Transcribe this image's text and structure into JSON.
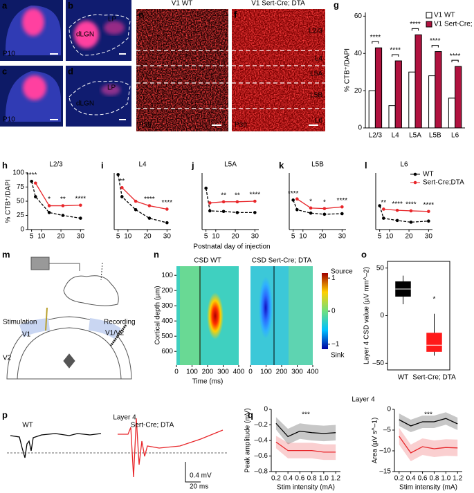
{
  "panel_labels": [
    "a",
    "b",
    "c",
    "d",
    "e",
    "f",
    "g",
    "h",
    "i",
    "j",
    "k",
    "l",
    "m",
    "n",
    "o",
    "p",
    "q"
  ],
  "histology": {
    "age_p10": "P10",
    "dlgn": "dLGN",
    "lp": "LP",
    "age_p30": "P30",
    "v1_wt": "V1 WT",
    "v1_dta": "V1 Sert-Cre; DTA",
    "layers": [
      "L2/3",
      "L4",
      "L5A",
      "L5B",
      "L6"
    ]
  },
  "chart_data": [
    {
      "type": "bar",
      "ylabel": "% CTB⁺/DAPI",
      "categories": [
        "L2/3",
        "L4",
        "L5A",
        "L5B",
        "L6"
      ],
      "series": [
        {
          "name": "V1 WT",
          "color": "#ffffff",
          "values": [
            20,
            12,
            30,
            28,
            16
          ]
        },
        {
          "name": "V1 Sert-Cre; DTA",
          "color": "#b0123f",
          "values": [
            43,
            36,
            50,
            41,
            33
          ]
        }
      ],
      "ylim": [
        0,
        62
      ],
      "yticks": [
        0,
        20,
        40,
        60
      ],
      "annotations": [
        "****",
        "****",
        "****",
        "****",
        "****"
      ]
    },
    {
      "type": "line",
      "title": "L2/3",
      "ylabel": "% CTB⁺/DAPI",
      "x": [
        5,
        7,
        14,
        21,
        30
      ],
      "xlim": [
        3,
        32
      ],
      "xticks": [
        5,
        10,
        20,
        30
      ],
      "ylim": [
        0,
        100
      ],
      "yticks": [
        0,
        25,
        50,
        75,
        100
      ],
      "markers": true,
      "series": [
        {
          "color": "#000000",
          "dashed": true,
          "values": [
            85,
            58,
            30,
            25,
            20
          ]
        },
        {
          "color": "#e8262a",
          "values": [
            null,
            82,
            42,
            42,
            43
          ]
        }
      ],
      "annotations": [
        {
          "x": 5,
          "text": "****"
        },
        {
          "x": 14,
          "text": "*"
        },
        {
          "x": 21,
          "text": "**"
        },
        {
          "x": 30,
          "text": "****"
        }
      ]
    },
    {
      "type": "line",
      "title": "L4",
      "x": [
        5,
        7,
        14,
        21,
        30
      ],
      "xlim": [
        3,
        32
      ],
      "xticks": [
        5,
        10,
        20,
        30
      ],
      "ylim": [
        0,
        100
      ],
      "markers": true,
      "series": [
        {
          "color": "#000000",
          "dashed": true,
          "values": [
            97,
            58,
            35,
            20,
            12
          ]
        },
        {
          "color": "#e8262a",
          "values": [
            null,
            74,
            50,
            42,
            36
          ]
        }
      ],
      "annotations": [
        {
          "x": 7,
          "text": "**"
        },
        {
          "x": 21,
          "text": "****"
        },
        {
          "x": 30,
          "text": "****"
        }
      ]
    },
    {
      "type": "line",
      "title": "L5A",
      "x": [
        5,
        7,
        14,
        21,
        30
      ],
      "xlim": [
        3,
        32
      ],
      "xticks": [
        5,
        10,
        20,
        30
      ],
      "ylim": [
        0,
        100
      ],
      "markers": true,
      "series": [
        {
          "color": "#000000",
          "dashed": true,
          "values": [
            73,
            33,
            32,
            30,
            30
          ]
        },
        {
          "color": "#e8262a",
          "values": [
            null,
            47,
            49,
            49,
            50
          ]
        }
      ],
      "annotations": [
        {
          "x": 14,
          "text": "**"
        },
        {
          "x": 21,
          "text": "**"
        },
        {
          "x": 30,
          "text": "****"
        }
      ]
    },
    {
      "type": "line",
      "title": "L5B",
      "x": [
        5,
        7,
        14,
        21,
        30
      ],
      "xlim": [
        3,
        32
      ],
      "xticks": [
        5,
        10,
        20,
        30
      ],
      "ylim": [
        0,
        100
      ],
      "markers": true,
      "series": [
        {
          "color": "#000000",
          "dashed": true,
          "values": [
            52,
            35,
            29,
            27,
            28
          ]
        },
        {
          "color": "#e8262a",
          "values": [
            null,
            54,
            38,
            37,
            40
          ]
        }
      ],
      "annotations": [
        {
          "x": 5,
          "text": "****"
        },
        {
          "x": 14,
          "text": "*"
        },
        {
          "x": 21,
          "text": "*"
        },
        {
          "x": 30,
          "text": "****"
        }
      ]
    },
    {
      "type": "line",
      "title": "L6",
      "x": [
        5,
        7,
        14,
        21,
        30
      ],
      "xlim": [
        3,
        32
      ],
      "xticks": [
        5,
        10,
        20,
        30
      ],
      "ylim": [
        0,
        100
      ],
      "markers": true,
      "series": [
        {
          "name": "WT",
          "color": "#000000",
          "dashed": true,
          "values": [
            42,
            20,
            16,
            13,
            15
          ]
        },
        {
          "name": "Sert-Cre;DTA",
          "color": "#e8262a",
          "values": [
            null,
            36,
            34,
            33,
            32
          ]
        }
      ],
      "annotations": [
        {
          "x": 7,
          "text": "**"
        },
        {
          "x": 14,
          "text": "****"
        },
        {
          "x": 21,
          "text": "****"
        },
        {
          "x": 30,
          "text": "****"
        }
      ]
    },
    {
      "type": "box",
      "ylabel": "Layer 4 CSD value (µV mm^–2)",
      "categories": [
        "WT",
        "Sert-Cre; DTA"
      ],
      "ylim": [
        -57,
        57
      ],
      "yticks": [
        {
          "value": -50,
          "label": "–50"
        },
        0,
        50
      ],
      "boxes": [
        {
          "color": "#000000",
          "min": 12,
          "q1": 20,
          "median": 28,
          "q3": 36,
          "max": 42
        },
        {
          "color": "#ff1a1a",
          "min": -42,
          "q1": -38,
          "median": -31,
          "q3": -18,
          "max": 2
        }
      ],
      "annotations": [
        {
          "text": "*"
        }
      ]
    },
    {
      "type": "line",
      "ylabel": "Peak amplitude (mV)",
      "xlabel": "Stim intensity (mA)",
      "x": [
        0.2,
        0.4,
        0.6,
        0.8,
        1,
        1.2
      ],
      "xlim": [
        0.12,
        1.28
      ],
      "xticks": [
        0.2,
        0.4,
        0.6,
        0.8,
        {
          "value": 1,
          "label": "1.0"
        },
        1.2
      ],
      "ylim": [
        -0.8,
        0
      ],
      "yticks": [
        {
          "value": -0.8,
          "label": "–0.8"
        },
        {
          "value": -0.6,
          "label": "–0.6"
        },
        {
          "value": -0.4,
          "label": "–0.4"
        },
        {
          "value": -0.2,
          "label": "–0.2"
        },
        0
      ],
      "series": [
        {
          "color": "#000000",
          "values": [
            -0.18,
            -0.35,
            -0.28,
            -0.3,
            -0.31,
            -0.3
          ],
          "errors": [
            0.08,
            0.1,
            0.1,
            0.1,
            0.1,
            0.1
          ]
        },
        {
          "color": "#e8262a",
          "values": [
            -0.42,
            -0.53,
            -0.53,
            -0.53,
            -0.55,
            -0.55
          ],
          "errors": [
            0.08,
            0.1,
            0.1,
            0.1,
            0.1,
            0.1
          ]
        }
      ],
      "annotations": [
        {
          "text": "***"
        }
      ]
    },
    {
      "type": "line",
      "ylabel": "Area (µV s^–1)",
      "xlabel": "Stim intensity (mA)",
      "x": [
        0.2,
        0.4,
        0.6,
        0.8,
        1,
        1.2
      ],
      "xlim": [
        0.12,
        1.28
      ],
      "xticks": [
        0.2,
        0.4,
        0.6,
        0.8,
        {
          "value": 1,
          "label": "1.0"
        },
        1.2
      ],
      "ylim": [
        -15,
        0
      ],
      "yticks": [
        {
          "value": -15,
          "label": "–15"
        },
        {
          "value": -10,
          "label": "–10"
        },
        {
          "value": -5,
          "label": "–5"
        },
        0
      ],
      "series": [
        {
          "color": "#000000",
          "values": [
            -2.5,
            -4,
            -3,
            -3,
            -2.2,
            -3.5
          ],
          "errors": [
            1.5,
            1.5,
            1.5,
            1.5,
            1.5,
            1.5
          ]
        },
        {
          "color": "#e8262a",
          "values": [
            -6.5,
            -10.5,
            -9,
            -9.5,
            -9.2,
            -9.3
          ],
          "errors": [
            2,
            2,
            2,
            2,
            2,
            2
          ]
        }
      ],
      "annotations": [
        {
          "text": "***"
        }
      ]
    }
  ],
  "time_course_x_label": "Postnatal day of injection",
  "diagram": {
    "stimulation": "Stimulation",
    "recording": "Recording",
    "v1_stim": "V1",
    "v1_v2": "V1/V2",
    "v2": "V2"
  },
  "csd": {
    "titles": [
      "CSD WT",
      "CSD Sert-Cre; DTA"
    ],
    "ylabel": "Cortical depth (µm)",
    "xlabel": "Time (ms)",
    "ylim": [
      40,
      690
    ],
    "yticks": [
      100,
      200,
      300,
      400,
      500,
      600
    ],
    "xlim": [
      0,
      400
    ],
    "xticks": [
      0,
      100,
      200,
      300,
      400
    ],
    "colorbar": {
      "top": "Source",
      "bottom": "Sink",
      "lim": [
        -1.15,
        1.15
      ],
      "ticks": [
        1,
        0,
        {
          "value": -1,
          "label": "−1"
        }
      ]
    }
  },
  "traces": {
    "title": "Layer 4",
    "wt": "WT",
    "dta": "Sert-Cre; DTA",
    "scale_amplitude": "0.4 mV",
    "scale_time": "20 ms"
  },
  "peak_title": "Layer 4"
}
